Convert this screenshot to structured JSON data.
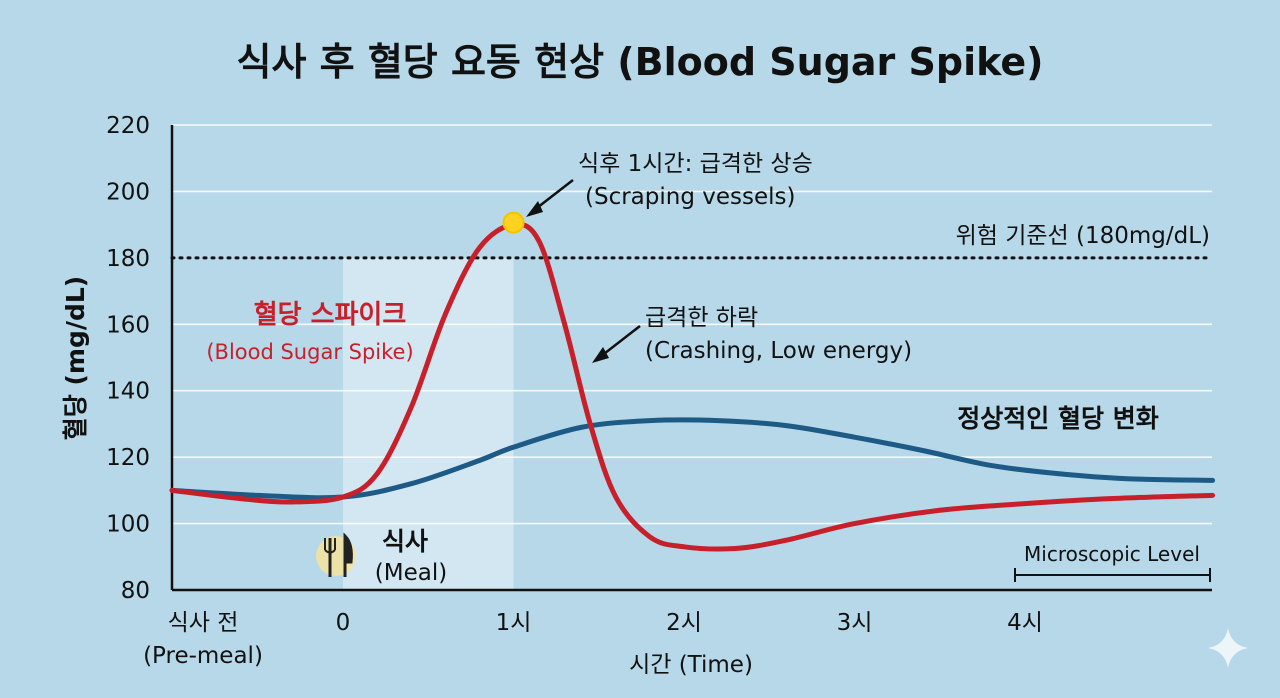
{
  "chart_data": {
    "type": "line",
    "title": "식사 후 혈당 요동 현상 (Blood Sugar Spike)",
    "ylabel": "혈당 (mg/dL)",
    "xlabel": "시간 (Time)",
    "ylim": [
      80,
      220
    ],
    "yticks": [
      80,
      100,
      120,
      140,
      160,
      180,
      200,
      220
    ],
    "xlim": [
      -1,
      4.1
    ],
    "xticks": [
      {
        "x": -1,
        "label": "식사 전",
        "sublabel": "(Pre-meal)"
      },
      {
        "x": 0,
        "label": "0",
        "sublabel": ""
      },
      {
        "x": 1,
        "label": "1시",
        "sublabel": ""
      },
      {
        "x": 2,
        "label": "2시",
        "sublabel": ""
      },
      {
        "x": 3,
        "label": "3시",
        "sublabel": ""
      },
      {
        "x": 4,
        "label": "4시",
        "sublabel": ""
      }
    ],
    "grid": true,
    "series": [
      {
        "name": "혈당 스파이크",
        "color": "#c8202b",
        "points": [
          [
            -1,
            110
          ],
          [
            -0.6,
            107.5
          ],
          [
            -0.3,
            106.5
          ],
          [
            0,
            108
          ],
          [
            0.2,
            115
          ],
          [
            0.4,
            135
          ],
          [
            0.6,
            163
          ],
          [
            0.8,
            183
          ],
          [
            1,
            190
          ],
          [
            1.15,
            185
          ],
          [
            1.3,
            160
          ],
          [
            1.45,
            130
          ],
          [
            1.6,
            108
          ],
          [
            1.8,
            96
          ],
          [
            2,
            93
          ],
          [
            2.3,
            92.5
          ],
          [
            2.6,
            95
          ],
          [
            3,
            100
          ],
          [
            3.5,
            104
          ],
          [
            4,
            106
          ],
          [
            4.5,
            107.5
          ],
          [
            5.1,
            108.5
          ]
        ]
      },
      {
        "name": "정상적인 혈당 변화",
        "color": "#1d5a86",
        "points": [
          [
            -1,
            110
          ],
          [
            -0.5,
            108.5
          ],
          [
            0,
            108
          ],
          [
            0.4,
            112
          ],
          [
            0.8,
            119
          ],
          [
            1,
            123
          ],
          [
            1.4,
            129
          ],
          [
            1.8,
            131
          ],
          [
            2.2,
            131
          ],
          [
            2.6,
            129.5
          ],
          [
            3,
            126
          ],
          [
            3.4,
            122
          ],
          [
            3.8,
            117.5
          ],
          [
            4.2,
            115
          ],
          [
            4.6,
            113.5
          ],
          [
            5.1,
            113
          ]
        ]
      }
    ],
    "threshold": {
      "y": 180,
      "label": "위험 기준선 (180mg/dL)"
    },
    "peak_marker": {
      "x": 1,
      "y": 190
    },
    "shaded_range": [
      0,
      1
    ],
    "annotations": {
      "peak_line1": "식후 1시간: 급격한 상승",
      "peak_line2": "(Scraping vessels)",
      "drop_line1": "급격한 하락",
      "drop_line2": "(Crashing, Low energy)",
      "spike_title": "혈당 스파이크",
      "spike_sub": "(Blood Sugar Spike)",
      "normal_label": "정상적인 혈당 변화",
      "meal_label": "식사",
      "meal_sub": "(Meal)",
      "micro_label": "Microscopic Level"
    }
  }
}
